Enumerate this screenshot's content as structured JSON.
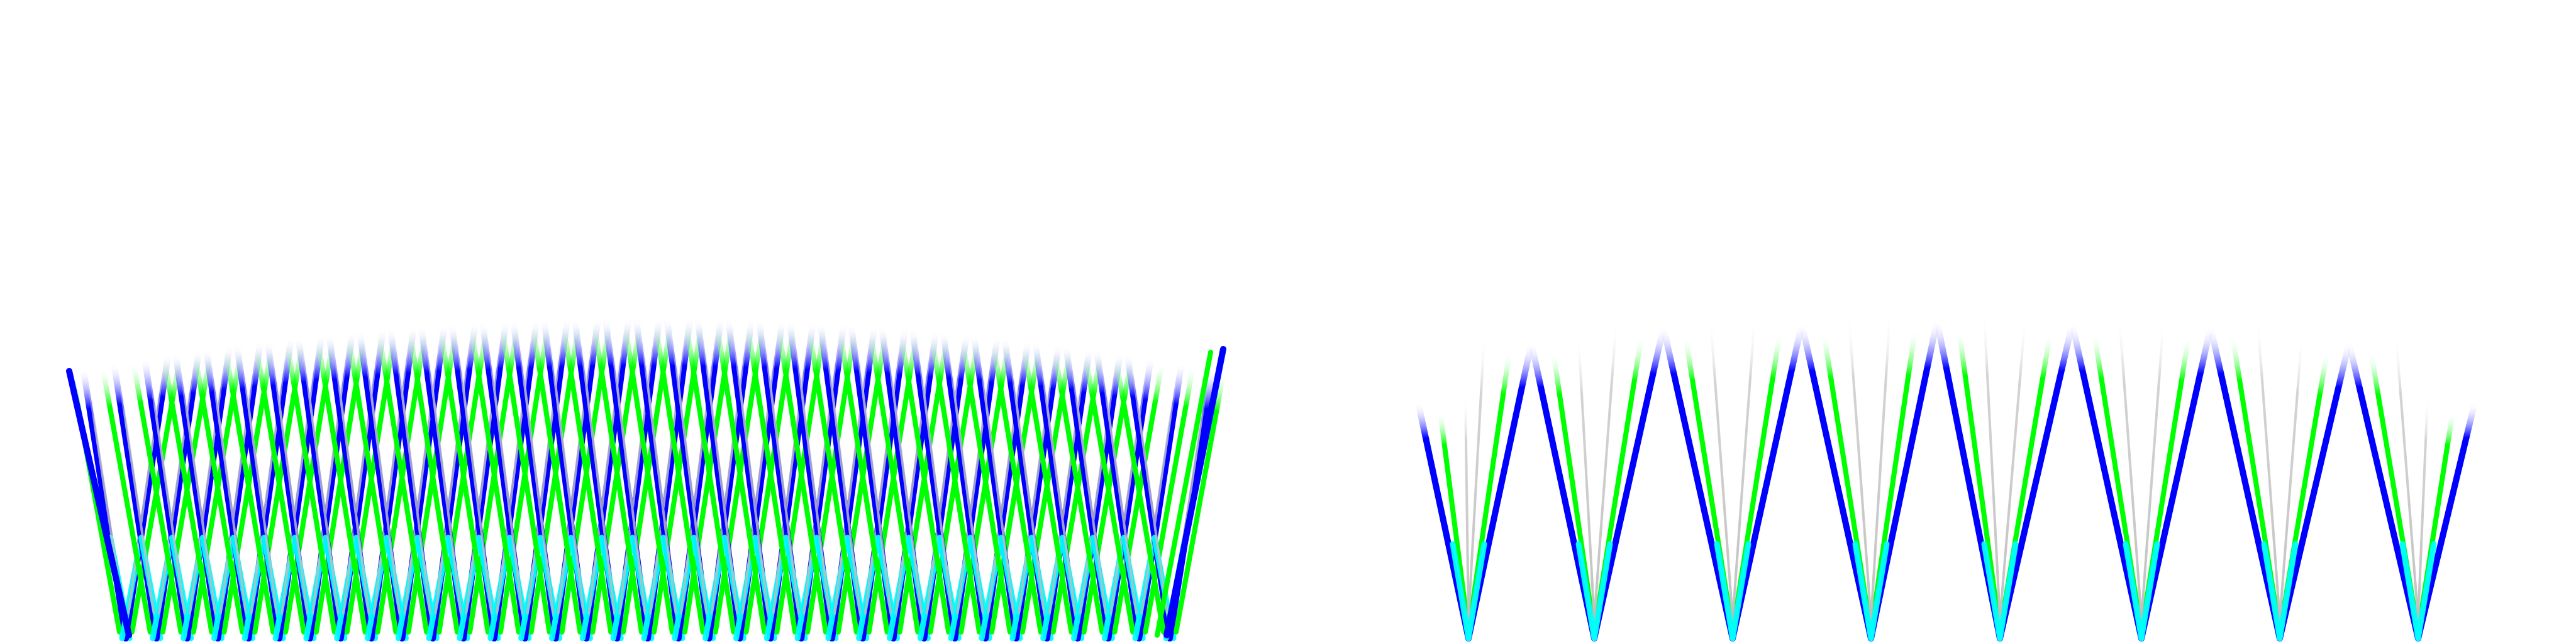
{
  "scene": {
    "description_free": true,
    "colors": {
      "background": "#ffffff",
      "primary_blue": "#0000ff",
      "green": "#00ff00",
      "cyan": "#00ffff",
      "light_blue_gray": "#9aa8ff"
    },
    "panels": [
      {
        "id": "left-fan-cluster",
        "style": "dense-interleaved-zigzag"
      },
      {
        "id": "right-fan-cluster",
        "style": "sparse-zigzag"
      }
    ]
  }
}
